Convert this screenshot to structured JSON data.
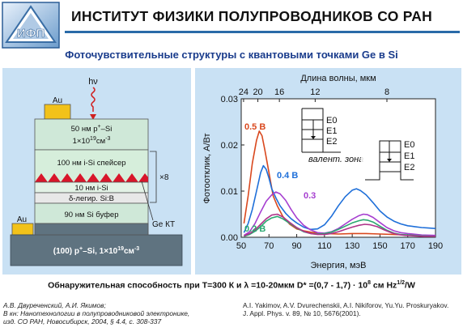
{
  "header": {
    "title": "ИНСТИТУТ ФИЗИКИ ПОЛУПРОВОДНИКОВ СО РАН",
    "logo_text": "ИФП"
  },
  "subtitle": "Фоточувствительные структуры с квантовыми  точками  Ge в Si",
  "structure": {
    "photon_label": "hν",
    "au_top": "Au",
    "au_left": "Au",
    "layer1_line1": "50 нм p",
    "layer1_sup": "+",
    "layer1_line1_end": "–Si",
    "layer1_line2": "1×10",
    "layer1_exp": "19",
    "layer1_unit": "см",
    "layer1_unit_exp": "-3",
    "spacer": "100 нм i-Si спейсер",
    "isi": "10 нм i-Si",
    "delta": "δ-легир. Si:B",
    "buffer": "90 нм Si буфер",
    "repeat": "×8",
    "ge_label": "Ge КТ",
    "substrate_a": "(100) p",
    "substrate_sup": "+",
    "substrate_b": "–Si, 1×10",
    "substrate_exp": "19",
    "substrate_unit": "см",
    "substrate_unit_exp": "-3"
  },
  "inset_labels": {
    "valence": "валент. зона",
    "levels": [
      "E0",
      "E1",
      "E2"
    ]
  },
  "chart_data": {
    "type": "line",
    "xlabel": "Энергия, мэВ",
    "ylabel": "Фотоотклик, А/Вт",
    "top_label": "Длина волны, мкм",
    "xlim": [
      50,
      190
    ],
    "ylim": [
      0,
      0.03
    ],
    "x_ticks": [
      50,
      70,
      90,
      110,
      130,
      150,
      170,
      190
    ],
    "y_ticks": [
      0.0,
      0.01,
      0.02,
      0.03
    ],
    "y_tick_labels": [
      "0.00",
      "0.01",
      "0.02",
      "0.03"
    ],
    "top_ticks": [
      {
        "label": "24",
        "energy": 51.7
      },
      {
        "label": "20",
        "energy": 62.0
      },
      {
        "label": "16",
        "energy": 77.5
      },
      {
        "label": "12",
        "energy": 103.3
      },
      {
        "label": "8",
        "energy": 155.0
      }
    ],
    "series": [
      {
        "name": "0.5 В",
        "color": "#d9481e",
        "x": [
          52,
          55,
          58,
          61,
          63,
          65,
          67,
          70,
          73,
          76,
          80,
          85,
          90,
          95,
          100,
          105,
          110,
          120,
          130,
          140,
          150,
          160,
          170,
          180,
          190
        ],
        "y": [
          0.003,
          0.009,
          0.016,
          0.021,
          0.023,
          0.022,
          0.019,
          0.014,
          0.009,
          0.0068,
          0.0045,
          0.0028,
          0.0018,
          0.0014,
          0.0011,
          0.0009,
          0.0008,
          0.0007,
          0.0008,
          0.0008,
          0.0007,
          0.0006,
          0.0005,
          0.0004,
          0.0003
        ]
      },
      {
        "name": "0.4 В",
        "color": "#1e6fd9",
        "x": [
          52,
          55,
          58,
          61,
          64,
          66,
          68,
          70,
          72,
          75,
          78,
          82,
          86,
          90,
          95,
          100,
          105,
          110,
          115,
          120,
          125,
          130,
          133,
          136,
          140,
          145,
          150,
          155,
          160,
          165,
          170,
          175,
          180,
          185,
          190
        ],
        "y": [
          0.001,
          0.003,
          0.006,
          0.01,
          0.014,
          0.0155,
          0.0147,
          0.0128,
          0.0105,
          0.0085,
          0.0068,
          0.0052,
          0.004,
          0.0031,
          0.0022,
          0.0017,
          0.0018,
          0.0027,
          0.0045,
          0.0068,
          0.0088,
          0.0102,
          0.0105,
          0.0101,
          0.0092,
          0.0075,
          0.0057,
          0.0044,
          0.0035,
          0.0029,
          0.0025,
          0.0023,
          0.0021,
          0.002,
          0.0019
        ]
      },
      {
        "name": "0.3",
        "color": "#a63fd0",
        "x": [
          52,
          56,
          60,
          64,
          68,
          72,
          75,
          78,
          82,
          86,
          90,
          95,
          100,
          105,
          110,
          115,
          120,
          125,
          130,
          135,
          138,
          141,
          145,
          150,
          155,
          160,
          165,
          170,
          180,
          190
        ],
        "y": [
          0.0004,
          0.0012,
          0.003,
          0.0055,
          0.0078,
          0.0092,
          0.0098,
          0.0094,
          0.008,
          0.006,
          0.0042,
          0.0026,
          0.0016,
          0.001,
          0.0009,
          0.0012,
          0.0019,
          0.0029,
          0.0039,
          0.0047,
          0.005,
          0.0049,
          0.0043,
          0.0032,
          0.0021,
          0.0014,
          0.001,
          0.0008,
          0.0005,
          0.0004
        ]
      },
      {
        "name": "0.2 В",
        "color": "#2aa870",
        "x": [
          52,
          56,
          60,
          64,
          68,
          72,
          76,
          80,
          85,
          90,
          95,
          100,
          105,
          110,
          115,
          120,
          125,
          130,
          135,
          138,
          141,
          145,
          150,
          155,
          160,
          165,
          170,
          180,
          190
        ],
        "y": [
          0.0002,
          0.0006,
          0.0013,
          0.0023,
          0.0035,
          0.0042,
          0.0045,
          0.004,
          0.003,
          0.002,
          0.0012,
          0.0008,
          0.0007,
          0.0008,
          0.0011,
          0.0017,
          0.0024,
          0.0031,
          0.0036,
          0.0038,
          0.0037,
          0.0033,
          0.0024,
          0.0015,
          0.0009,
          0.0006,
          0.0005,
          0.0003,
          0.0002
        ]
      },
      {
        "name": "",
        "color": "#b0338a",
        "x": [
          52,
          56,
          60,
          64,
          68,
          72,
          76,
          80,
          85,
          90,
          95,
          100,
          105,
          110,
          115,
          120,
          125,
          130,
          135,
          139,
          143,
          148,
          153,
          158,
          163,
          168,
          175,
          182,
          190
        ],
        "y": [
          0.0003,
          0.0008,
          0.0016,
          0.0028,
          0.004,
          0.0048,
          0.005,
          0.0044,
          0.0032,
          0.0021,
          0.0013,
          0.0008,
          0.0006,
          0.0006,
          0.0008,
          0.0012,
          0.0017,
          0.0022,
          0.0026,
          0.0028,
          0.0027,
          0.0023,
          0.0016,
          0.001,
          0.0006,
          0.0004,
          0.0003,
          0.0002,
          0.0002
        ]
      }
    ]
  },
  "detectivity": {
    "text_a": "Обнаружительная способность при T=300 К и λ =10-20мкм D* =(0,7 - 1,7) · 10",
    "exp_a": "8",
    "text_b": " см Hz",
    "exp_b": "1/2",
    "text_c": "/W"
  },
  "refs": {
    "left": [
      "А.В. Двуреченский, А.И. Якимов;",
      "В кн: Нанотехнологии в полупроводниковой электронике,",
      "изд. СО РАН, Новосибирск, 2004, § 4.4, с. 308-337"
    ],
    "right": [
      "A.I. Yakimov, A.V. Dvurechenskii, A.I. Nikiforov, Yu.Yu. Proskuryakov.",
      "J. Appl. Phys. v. 89, № 10, 5676(2001)."
    ]
  }
}
